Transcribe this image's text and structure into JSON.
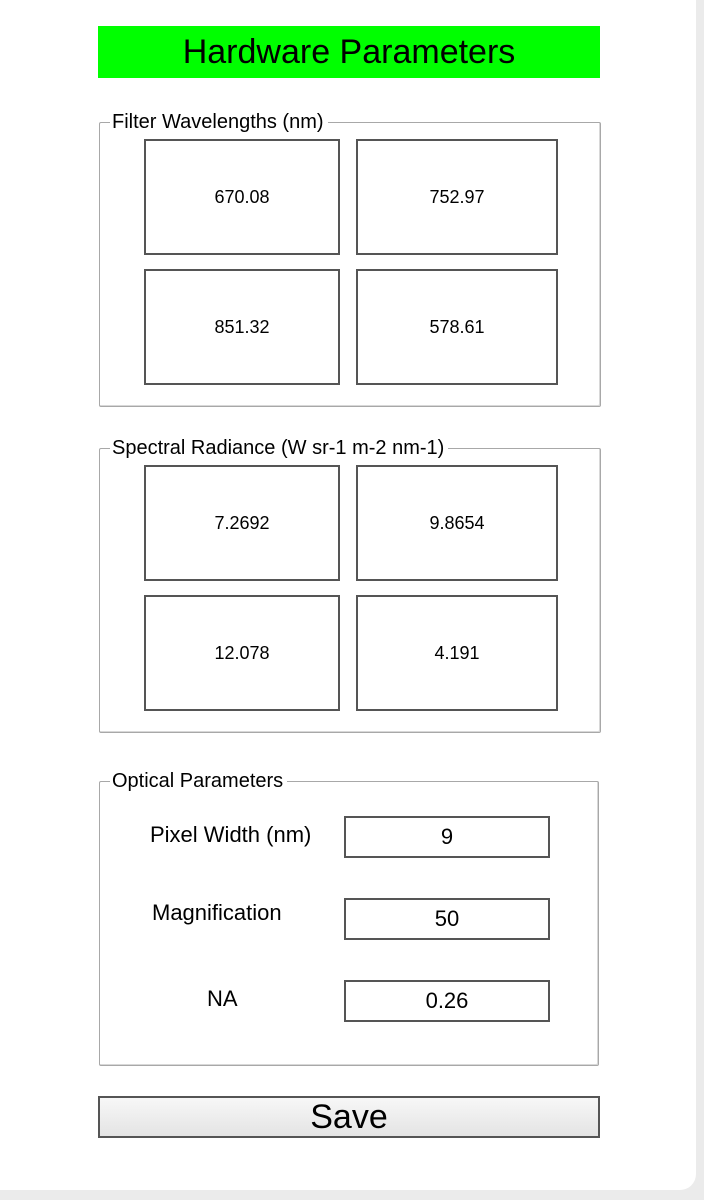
{
  "header": {
    "title": "Hardware Parameters",
    "color": "#00ff00"
  },
  "filter_wavelengths": {
    "label": "Filter Wavelengths (nm)",
    "values": [
      "670.08",
      "752.97",
      "851.32",
      "578.61"
    ]
  },
  "spectral_radiance": {
    "label": "Spectral Radiance (W sr-1 m-2 nm-1)",
    "values": [
      "7.2692",
      "9.8654",
      "12.078",
      "4.191"
    ]
  },
  "optical": {
    "label": "Optical Parameters",
    "pixel_width_label": "Pixel Width (nm)",
    "pixel_width_value": "9",
    "magnification_label": "Magnification",
    "magnification_value": "50",
    "na_label": "NA",
    "na_value": "0.26"
  },
  "save_label": "Save"
}
